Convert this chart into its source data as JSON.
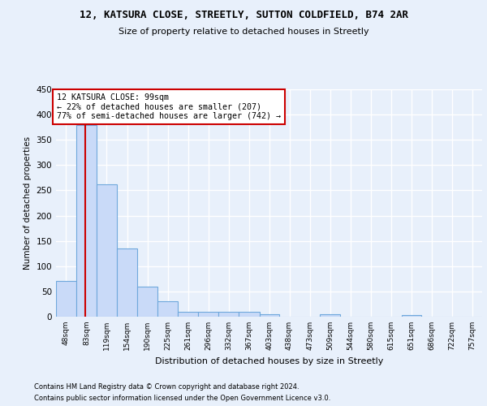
{
  "title1": "12, KATSURA CLOSE, STREETLY, SUTTON COLDFIELD, B74 2AR",
  "title2": "Size of property relative to detached houses in Streetly",
  "xlabel": "Distribution of detached houses by size in Streetly",
  "ylabel": "Number of detached properties",
  "footer1": "Contains HM Land Registry data © Crown copyright and database right 2024.",
  "footer2": "Contains public sector information licensed under the Open Government Licence v3.0.",
  "annotation_line1": "12 KATSURA CLOSE: 99sqm",
  "annotation_line2": "← 22% of detached houses are smaller (207)",
  "annotation_line3": "77% of semi-detached houses are larger (742) →",
  "bar_edges": [
    48,
    83,
    119,
    154,
    190,
    225,
    261,
    296,
    332,
    367,
    403,
    438,
    473,
    509,
    544,
    580,
    615,
    651,
    686,
    722,
    757
  ],
  "bar_heights": [
    70,
    380,
    262,
    135,
    60,
    30,
    10,
    9,
    10,
    10,
    5,
    0,
    0,
    5,
    0,
    0,
    0,
    4,
    0,
    0,
    0
  ],
  "bar_color": "#c9daf8",
  "bar_edge_color": "#6fa8dc",
  "redline_x": 99,
  "redline_color": "#cc0000",
  "ylim": [
    0,
    450
  ],
  "yticks": [
    0,
    50,
    100,
    150,
    200,
    250,
    300,
    350,
    400,
    450
  ],
  "bg_color": "#e8f0fb",
  "plot_bg_color": "#e8f0fb",
  "grid_color": "#ffffff",
  "annotation_box_color": "#ffffff",
  "annotation_box_edge": "#cc0000"
}
